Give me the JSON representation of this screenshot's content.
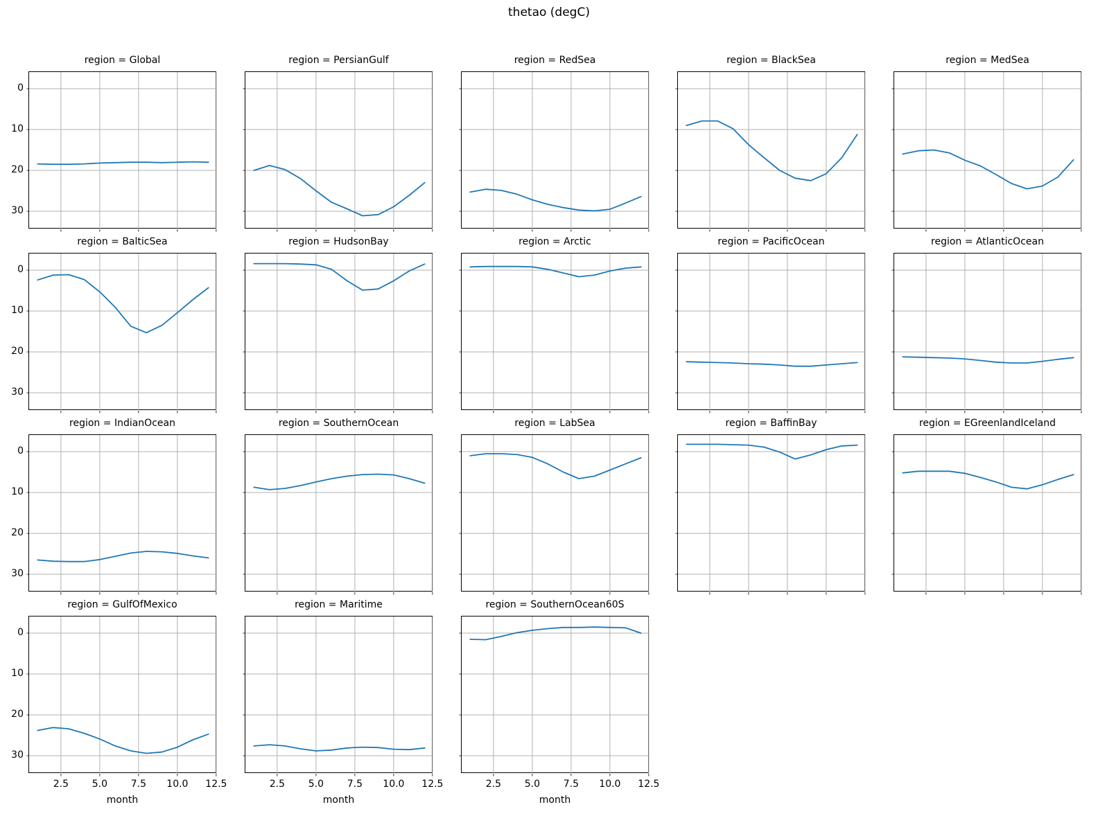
{
  "figure": {
    "suptitle": "thetao (degC)"
  },
  "chart_data": {
    "type": "line",
    "suptitle": "thetao (degC)",
    "xlabel": "month",
    "x": [
      1,
      2,
      3,
      4,
      5,
      6,
      7,
      8,
      9,
      10,
      11,
      12
    ],
    "xlim": [
      0.45,
      12.55
    ],
    "ylim": [
      -4.07,
      34.4
    ],
    "y_axis_inverted": true,
    "grid": true,
    "xticks": [
      2.5,
      5.0,
      7.5,
      10.0,
      12.5
    ],
    "xtick_labels": [
      "2.5",
      "5.0",
      "7.5",
      "10.0",
      "12.5"
    ],
    "yticks": [
      0,
      10,
      20,
      30
    ],
    "ytick_labels": [
      "0",
      "10",
      "20",
      "30"
    ],
    "line_color": "#1f77b4",
    "grid_color": "#b0b0b0",
    "spine_color": "#000000",
    "grid_layout": {
      "rows": 4,
      "cols": 5,
      "facet_count": 18
    },
    "facets": [
      {
        "region": "Global",
        "title": "region = Global",
        "values": [
          18.4,
          18.5,
          18.5,
          18.4,
          18.2,
          18.1,
          18.0,
          18.0,
          18.1,
          18.0,
          17.9,
          18.0
        ]
      },
      {
        "region": "PersianGulf",
        "title": "region = PersianGulf",
        "values": [
          20.0,
          18.8,
          19.8,
          22.0,
          25.0,
          27.8,
          29.4,
          31.1,
          30.8,
          28.9,
          26.1,
          23.0
        ]
      },
      {
        "region": "RedSea",
        "title": "region = RedSea",
        "values": [
          25.3,
          24.6,
          24.9,
          25.8,
          27.2,
          28.3,
          29.1,
          29.7,
          29.9,
          29.5,
          28.0,
          26.4
        ]
      },
      {
        "region": "BlackSea",
        "title": "region = BlackSea",
        "values": [
          9.0,
          7.9,
          7.9,
          9.8,
          13.7,
          16.9,
          20.0,
          21.9,
          22.5,
          20.8,
          16.9,
          11.2
        ]
      },
      {
        "region": "MedSea",
        "title": "region = MedSea",
        "values": [
          16.0,
          15.2,
          15.0,
          15.7,
          17.5,
          18.9,
          21.0,
          23.2,
          24.5,
          23.8,
          21.6,
          17.4
        ]
      },
      {
        "region": "BalticSea",
        "title": "region = BalticSea",
        "values": [
          2.4,
          1.2,
          1.1,
          2.3,
          5.3,
          9.1,
          13.7,
          15.3,
          13.5,
          10.4,
          7.2,
          4.3
        ]
      },
      {
        "region": "HudsonBay",
        "title": "region = HudsonBay",
        "values": [
          -1.6,
          -1.6,
          -1.6,
          -1.5,
          -1.3,
          -0.2,
          2.6,
          4.9,
          4.6,
          2.6,
          0.2,
          -1.5
        ]
      },
      {
        "region": "Arctic",
        "title": "region = Arctic",
        "values": [
          -0.8,
          -0.9,
          -0.9,
          -0.9,
          -0.8,
          -0.2,
          0.7,
          1.6,
          1.2,
          0.2,
          -0.5,
          -0.8
        ]
      },
      {
        "region": "PacificOcean",
        "title": "region = PacificOcean",
        "values": [
          22.4,
          22.5,
          22.6,
          22.7,
          22.9,
          23.0,
          23.2,
          23.5,
          23.5,
          23.2,
          22.9,
          22.6
        ]
      },
      {
        "region": "AtlanticOcean",
        "title": "region = AtlanticOcean",
        "values": [
          21.2,
          21.3,
          21.4,
          21.5,
          21.7,
          22.1,
          22.5,
          22.7,
          22.7,
          22.3,
          21.8,
          21.4
        ]
      },
      {
        "region": "IndianOcean",
        "title": "region = IndianOcean",
        "values": [
          26.5,
          26.8,
          26.9,
          26.9,
          26.4,
          25.6,
          24.8,
          24.4,
          24.5,
          24.9,
          25.5,
          26.0
        ]
      },
      {
        "region": "SouthernOcean",
        "title": "region = SouthernOcean",
        "values": [
          8.7,
          9.3,
          9.0,
          8.3,
          7.4,
          6.6,
          6.0,
          5.6,
          5.5,
          5.7,
          6.6,
          7.7
        ]
      },
      {
        "region": "LabSea",
        "title": "region = LabSea",
        "values": [
          1.0,
          0.5,
          0.5,
          0.7,
          1.4,
          3.0,
          5.0,
          6.6,
          6.0,
          4.5,
          3.0,
          1.5
        ]
      },
      {
        "region": "BaffinBay",
        "title": "region = BaffinBay",
        "values": [
          -1.8,
          -1.8,
          -1.8,
          -1.7,
          -1.6,
          -1.1,
          0.1,
          1.8,
          0.8,
          -0.5,
          -1.4,
          -1.6
        ]
      },
      {
        "region": "EGreenlandIceland",
        "title": "region = EGreenlandIceland",
        "values": [
          5.2,
          4.8,
          4.8,
          4.8,
          5.3,
          6.3,
          7.4,
          8.7,
          9.1,
          8.1,
          6.8,
          5.6
        ]
      },
      {
        "region": "GulfOfMexico",
        "title": "region = GulfOfMexico",
        "values": [
          23.8,
          23.1,
          23.4,
          24.5,
          25.9,
          27.6,
          28.8,
          29.4,
          29.1,
          27.9,
          26.1,
          24.7
        ]
      },
      {
        "region": "Maritime",
        "title": "region = Maritime",
        "values": [
          27.6,
          27.3,
          27.6,
          28.3,
          28.8,
          28.6,
          28.1,
          27.9,
          28.0,
          28.4,
          28.5,
          28.1
        ]
      },
      {
        "region": "SouthernOcean60S",
        "title": "region = SouthernOcean60S",
        "values": [
          1.5,
          1.6,
          0.8,
          -0.1,
          -0.7,
          -1.1,
          -1.4,
          -1.4,
          -1.5,
          -1.4,
          -1.3,
          0.0
        ]
      }
    ]
  }
}
